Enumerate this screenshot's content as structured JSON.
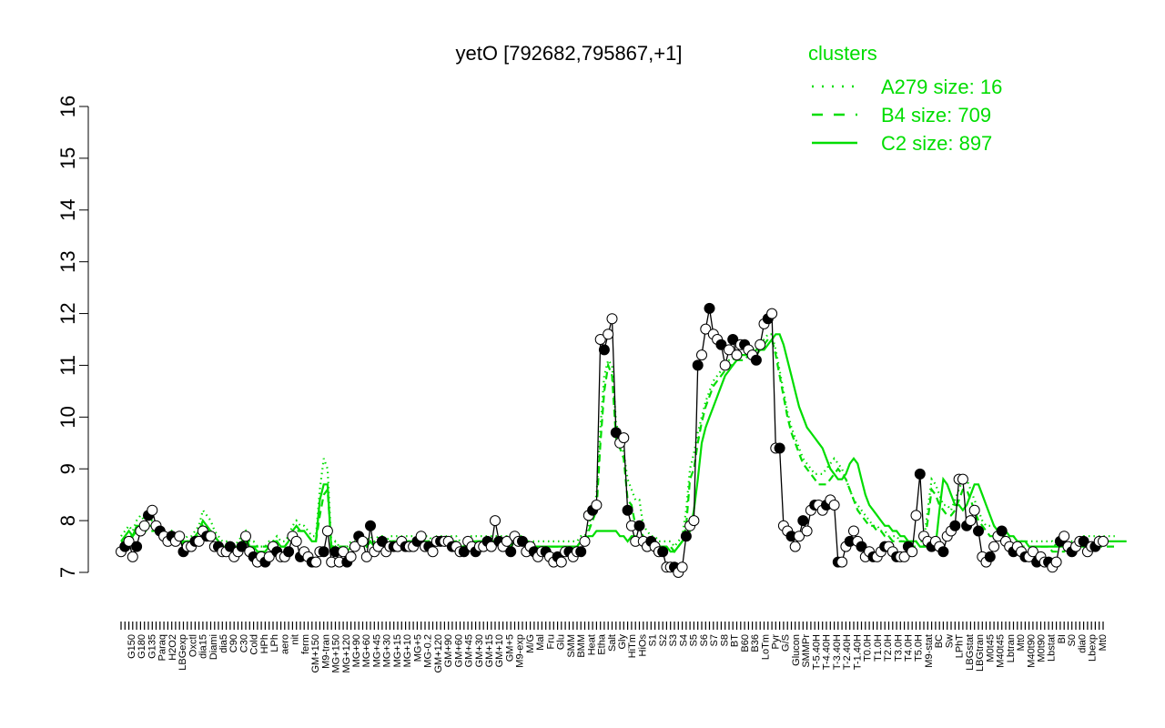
{
  "chart_data": {
    "type": "line",
    "title": "yetO [792682,795867,+1]",
    "xlabel": "",
    "ylabel": "",
    "ylim": [
      7,
      16
    ],
    "yticks": [
      7,
      8,
      9,
      10,
      11,
      12,
      13,
      14,
      15,
      16
    ],
    "grid": false,
    "colors": {
      "cluster": "#00dd00",
      "points": "#000000",
      "point_fill": "#ffffff",
      "rug": "#000000"
    },
    "legend": {
      "position": "top-right",
      "title": "clusters",
      "entries": [
        {
          "label": "A279 size: 16",
          "style": "dotted"
        },
        {
          "label": "B4 size: 709",
          "style": "dashed"
        },
        {
          "label": "C2 size: 897",
          "style": "solid"
        }
      ]
    },
    "x_tick_labels": [
      "G150",
      "G180",
      "G135",
      "Paraq",
      "H2O2",
      "LBGexp",
      "Oxctl",
      "dia15",
      "Diami",
      "dia5",
      "C90",
      "C30",
      "Cold",
      "HPh",
      "LPh",
      "aero",
      "nit",
      "ferm",
      "GM+150",
      "M9-tran",
      "MG+150",
      "MG+120",
      "MG+90",
      "MG+60",
      "MG+45",
      "MG+30",
      "MG+15",
      "MG+10",
      "MG+5",
      "MG-0.2",
      "GM+120",
      "GM+90",
      "GM+60",
      "GM+45",
      "GM+30",
      "GM+15",
      "GM+10",
      "GM+5",
      "M9-exp",
      "M/G",
      "Mal",
      "Fru",
      "Glu",
      "SMM",
      "BMM",
      "Heat",
      "Etha",
      "Salt",
      "Gly",
      "HiTm",
      "HiOs",
      "S1",
      "S2",
      "S3",
      "S4",
      "S5",
      "S6",
      "S7",
      "S8",
      "BT",
      "B60",
      "B36",
      "LoTm",
      "Pyr",
      "G/S",
      "Glucon",
      "SMMPr",
      "T-5.40H",
      "T-4.40H",
      "T-3.40H",
      "T-2.40H",
      "T-1.40H",
      "T0.0H",
      "T1.0H",
      "T2.0H",
      "T3.0H",
      "T4.0H",
      "T5.0H",
      "M9-stat",
      "BC",
      "Sw",
      "LPhT",
      "LBGstat",
      "LBGtran",
      "M0t45",
      "M40t45",
      "Lbtran",
      "Mt0",
      "M40t90",
      "M0t90",
      "Lbstat",
      "BI",
      "S0",
      "dia0",
      "Lbexp",
      "Mt0"
    ],
    "series": [
      {
        "name": "yetO",
        "values": [
          7.4,
          7.5,
          7.6,
          7.3,
          7.5,
          7.8,
          7.9,
          8.1,
          8.2,
          7.9,
          7.8,
          7.7,
          7.6,
          7.7,
          7.6,
          7.7,
          7.4,
          7.5,
          7.5,
          7.6,
          7.6,
          7.8,
          7.7,
          7.7,
          7.5,
          7.5,
          7.4,
          7.4,
          7.5,
          7.3,
          7.4,
          7.5,
          7.7,
          7.4,
          7.3,
          7.2,
          7.3,
          7.2,
          7.3,
          7.5,
          7.4,
          7.3,
          7.3,
          7.4,
          7.7,
          7.6,
          7.3,
          7.4,
          7.3,
          7.2,
          7.2,
          7.4,
          7.4,
          7.8,
          7.2,
          7.4,
          7.2,
          7.4,
          7.2,
          7.3,
          7.5,
          7.7,
          7.6,
          7.3,
          7.9,
          7.4,
          7.5,
          7.6,
          7.4,
          7.5,
          7.5,
          7.5,
          7.6,
          7.5,
          7.5,
          7.5,
          7.6,
          7.7,
          7.5,
          7.5,
          7.4,
          7.6,
          7.6,
          7.6,
          7.6,
          7.5,
          7.5,
          7.4,
          7.4,
          7.6,
          7.5,
          7.4,
          7.5,
          7.5,
          7.6,
          7.5,
          8.0,
          7.6,
          7.5,
          7.6,
          7.4,
          7.7,
          7.6,
          7.6,
          7.4,
          7.5,
          7.4,
          7.3,
          7.4,
          7.4,
          7.3,
          7.2,
          7.3,
          7.2,
          7.4,
          7.4,
          7.3,
          7.4,
          7.4,
          7.6,
          8.1,
          8.2,
          8.3,
          11.5,
          11.3,
          11.6,
          11.9,
          9.7,
          9.5,
          9.6,
          8.2,
          7.9,
          7.6,
          7.9,
          7.6,
          7.5,
          7.6,
          7.5,
          7.4,
          7.4,
          7.1,
          7.1,
          7.1,
          7.0,
          7.1,
          7.7,
          7.9,
          8.0,
          11.0,
          11.2,
          11.7,
          12.1,
          11.6,
          11.5,
          11.4,
          11.0,
          11.3,
          11.5,
          11.2,
          11.4,
          11.4,
          11.3,
          11.2,
          11.1,
          11.4,
          11.8,
          11.9,
          12.0,
          9.4,
          9.4,
          7.9,
          7.8,
          7.7,
          7.5,
          7.7,
          8.0,
          7.8,
          8.2,
          8.3,
          8.3,
          8.2,
          8.3,
          8.4,
          8.3,
          7.2,
          7.2,
          7.5,
          7.6,
          7.8,
          7.6,
          7.5,
          7.3,
          7.4,
          7.3,
          7.3,
          7.4,
          7.5,
          7.5,
          7.4,
          7.3,
          7.3,
          7.3,
          7.5,
          7.4,
          8.1,
          8.9,
          7.7,
          7.6,
          7.5,
          7.6,
          7.5,
          7.4,
          7.7,
          7.8,
          7.9,
          8.8,
          8.8,
          7.9,
          8.0,
          8.2,
          7.8,
          7.3,
          7.2,
          7.3,
          7.5,
          7.7,
          7.8,
          7.6,
          7.5,
          7.4,
          7.5,
          7.4,
          7.3,
          7.3,
          7.4,
          7.2,
          7.3,
          7.2,
          7.2,
          7.1,
          7.2,
          7.6,
          7.7,
          7.5,
          7.4,
          7.5,
          7.6,
          7.6,
          7.4,
          7.5,
          7.5,
          7.6,
          7.6
        ]
      },
      {
        "name": "C2 size: 897",
        "values": [
          7.6,
          7.7,
          7.8,
          7.7,
          7.9,
          7.9,
          7.8,
          7.9,
          7.9,
          7.8,
          7.7,
          7.7,
          7.6,
          7.7,
          7.6,
          7.7,
          7.5,
          7.6,
          7.6,
          7.7,
          7.8,
          8.0,
          7.9,
          7.8,
          7.7,
          7.6,
          7.5,
          7.5,
          7.5,
          7.4,
          7.5,
          7.6,
          7.7,
          7.5,
          7.5,
          7.4,
          7.4,
          7.4,
          7.5,
          7.5,
          7.6,
          7.5,
          7.5,
          7.6,
          7.8,
          7.9,
          7.8,
          7.8,
          7.7,
          7.6,
          7.6,
          8.4,
          8.7,
          8.7,
          7.4,
          7.5,
          7.4,
          7.4,
          7.4,
          7.5,
          7.5,
          7.6,
          7.6,
          7.5,
          7.6,
          7.5,
          7.6,
          7.6,
          7.5,
          7.6,
          7.6,
          7.6,
          7.6,
          7.6,
          7.6,
          7.6,
          7.6,
          7.7,
          7.6,
          7.6,
          7.5,
          7.6,
          7.6,
          7.6,
          7.6,
          7.6,
          7.6,
          7.5,
          7.5,
          7.6,
          7.6,
          7.6,
          7.6,
          7.6,
          7.6,
          7.6,
          7.6,
          7.6,
          7.6,
          7.6,
          7.5,
          7.6,
          7.6,
          7.6,
          7.5,
          7.5,
          7.5,
          7.5,
          7.5,
          7.5,
          7.5,
          7.5,
          7.5,
          7.5,
          7.5,
          7.5,
          7.5,
          7.5,
          7.6,
          7.6,
          7.7,
          7.7,
          7.8,
          7.8,
          7.8,
          7.8,
          7.8,
          7.8,
          7.7,
          7.7,
          7.6,
          7.7,
          7.7,
          7.6,
          7.6,
          7.6,
          7.6,
          7.5,
          7.5,
          7.5,
          7.5,
          7.4,
          7.4,
          7.5,
          7.6,
          7.7,
          7.8,
          8.2,
          8.8,
          9.5,
          9.8,
          10.0,
          10.2,
          10.4,
          10.6,
          10.8,
          10.9,
          11.0,
          11.1,
          11.2,
          11.2,
          11.2,
          11.2,
          11.2,
          11.3,
          11.3,
          11.4,
          11.5,
          11.6,
          11.6,
          11.4,
          11.1,
          10.8,
          10.5,
          10.2,
          10.0,
          9.8,
          9.7,
          9.6,
          9.5,
          9.4,
          9.2,
          9.0,
          8.9,
          8.8,
          8.8,
          8.9,
          9.1,
          9.2,
          9.1,
          8.8,
          8.5,
          8.3,
          8.2,
          8.1,
          8.0,
          7.9,
          7.9,
          7.8,
          7.8,
          7.7,
          7.7,
          7.6,
          7.6,
          7.6,
          7.5,
          7.5,
          7.5,
          7.5,
          7.5,
          8.2,
          8.8,
          8.7,
          8.5,
          8.3,
          8.3,
          8.2,
          8.3,
          8.5,
          8.7,
          8.7,
          8.5,
          8.3,
          8.1,
          7.9,
          7.8,
          7.8,
          7.8,
          7.7,
          7.7,
          7.6,
          7.6,
          7.6,
          7.5,
          7.5,
          7.5,
          7.5,
          7.5,
          7.5,
          7.5,
          7.5,
          7.5,
          7.5,
          7.4,
          7.4,
          7.4,
          7.5,
          7.5,
          7.5,
          7.5,
          7.6,
          7.6,
          7.6,
          7.6,
          7.6,
          7.6,
          7.6,
          7.6,
          7.6
        ]
      },
      {
        "name": "B4 size: 709",
        "values": [
          7.6,
          7.6,
          7.7,
          7.7,
          7.8,
          7.8,
          7.8,
          7.8,
          7.8,
          7.8,
          7.7,
          7.7,
          7.6,
          7.6,
          7.6,
          7.6,
          7.6,
          7.6,
          7.6,
          7.7,
          7.7,
          7.9,
          7.8,
          7.8,
          7.7,
          7.6,
          7.5,
          7.5,
          7.5,
          7.5,
          7.5,
          7.6,
          7.6,
          7.5,
          7.5,
          7.5,
          7.5,
          7.5,
          7.5,
          7.6,
          7.6,
          7.5,
          7.5,
          7.6,
          7.7,
          7.8,
          7.8,
          7.8,
          7.7,
          7.6,
          7.6,
          8.1,
          8.5,
          8.6,
          7.5,
          7.5,
          7.5,
          7.5,
          7.5,
          7.5,
          7.5,
          7.6,
          7.6,
          7.5,
          7.6,
          7.5,
          7.6,
          7.6,
          7.5,
          7.6,
          7.6,
          7.6,
          7.6,
          7.6,
          7.6,
          7.6,
          7.6,
          7.6,
          7.6,
          7.6,
          7.5,
          7.6,
          7.6,
          7.6,
          7.6,
          7.6,
          7.6,
          7.5,
          7.5,
          7.6,
          7.6,
          7.6,
          7.6,
          7.6,
          7.6,
          7.6,
          7.6,
          7.6,
          7.6,
          7.6,
          7.5,
          7.6,
          7.6,
          7.6,
          7.5,
          7.5,
          7.5,
          7.5,
          7.5,
          7.5,
          7.5,
          7.5,
          7.5,
          7.5,
          7.5,
          7.5,
          7.5,
          7.5,
          7.6,
          7.6,
          7.8,
          8.0,
          8.2,
          9.5,
          10.5,
          11.0,
          10.8,
          9.6,
          9.4,
          9.2,
          8.4,
          8.3,
          7.9,
          7.8,
          7.7,
          7.6,
          7.6,
          7.6,
          7.5,
          7.5,
          7.5,
          7.5,
          7.4,
          7.5,
          7.6,
          7.9,
          8.8,
          9.0,
          9.5,
          9.9,
          10.2,
          10.4,
          10.6,
          10.7,
          10.8,
          10.9,
          11.0,
          11.0,
          11.1,
          11.1,
          11.1,
          11.2,
          11.2,
          11.3,
          11.3,
          11.4,
          11.5,
          11.5,
          11.2,
          10.8,
          10.4,
          10.0,
          9.7,
          9.5,
          9.3,
          9.1,
          9.0,
          8.9,
          8.8,
          8.7,
          8.7,
          8.7,
          8.8,
          8.9,
          9.0,
          8.9,
          8.8,
          8.6,
          8.4,
          8.2,
          8.1,
          8.0,
          7.9,
          7.9,
          7.8,
          7.8,
          7.7,
          7.7,
          7.6,
          7.6,
          7.6,
          7.6,
          7.5,
          7.5,
          7.5,
          7.5,
          7.5,
          8.0,
          8.6,
          8.5,
          8.3,
          8.2,
          8.1,
          8.1,
          8.2,
          8.4,
          8.6,
          8.6,
          8.4,
          8.2,
          8.0,
          7.9,
          7.8,
          7.7,
          7.7,
          7.7,
          7.6,
          7.6,
          7.6,
          7.5,
          7.5,
          7.5,
          7.5,
          7.5,
          7.5,
          7.5,
          7.5,
          7.5,
          7.5,
          7.4,
          7.4,
          7.4,
          7.4,
          7.5,
          7.5,
          7.5,
          7.5,
          7.5,
          7.5,
          7.5,
          7.5,
          7.5,
          7.5,
          7.5,
          7.5,
          7.5
        ]
      },
      {
        "name": "A279 size: 16",
        "values": [
          7.7,
          7.8,
          7.9,
          7.8,
          8.0,
          8.1,
          8.0,
          8.0,
          8.0,
          7.9,
          7.8,
          7.8,
          7.7,
          7.8,
          7.7,
          7.8,
          7.6,
          7.7,
          7.7,
          7.8,
          7.9,
          8.2,
          8.1,
          8.0,
          7.8,
          7.7,
          7.6,
          7.6,
          7.6,
          7.5,
          7.6,
          7.7,
          7.8,
          7.6,
          7.6,
          7.5,
          7.5,
          7.5,
          7.6,
          7.6,
          7.7,
          7.6,
          7.6,
          7.7,
          7.9,
          8.0,
          7.9,
          7.9,
          7.8,
          7.7,
          7.7,
          8.6,
          9.2,
          9.0,
          7.5,
          7.6,
          7.5,
          7.5,
          7.5,
          7.6,
          7.6,
          7.7,
          7.7,
          7.6,
          7.7,
          7.6,
          7.7,
          7.7,
          7.6,
          7.7,
          7.7,
          7.7,
          7.7,
          7.7,
          7.7,
          7.7,
          7.7,
          7.8,
          7.7,
          7.7,
          7.6,
          7.7,
          7.7,
          7.7,
          7.7,
          7.7,
          7.7,
          7.6,
          7.6,
          7.7,
          7.7,
          7.7,
          7.7,
          7.7,
          7.7,
          7.7,
          7.7,
          7.7,
          7.7,
          7.7,
          7.6,
          7.7,
          7.7,
          7.7,
          7.6,
          7.6,
          7.6,
          7.6,
          7.6,
          7.6,
          7.6,
          7.6,
          7.6,
          7.6,
          7.6,
          7.6,
          7.6,
          7.6,
          7.7,
          7.7,
          7.9,
          8.2,
          8.5,
          9.8,
          10.8,
          11.1,
          11.0,
          9.9,
          9.6,
          9.3,
          8.8,
          8.6,
          8.4,
          8.4,
          7.9,
          7.8,
          7.7,
          7.7,
          7.6,
          7.6,
          7.6,
          7.6,
          7.5,
          7.6,
          7.7,
          8.2,
          9.0,
          9.3,
          9.7,
          10.0,
          10.3,
          10.5,
          10.7,
          10.8,
          10.9,
          11.0,
          11.1,
          11.1,
          11.2,
          11.2,
          11.2,
          11.3,
          11.3,
          11.4,
          11.4,
          11.5,
          11.6,
          11.6,
          11.3,
          10.9,
          10.5,
          10.1,
          9.8,
          9.6,
          9.4,
          9.2,
          9.1,
          9.0,
          8.9,
          8.9,
          8.9,
          9.0,
          9.1,
          9.2,
          9.1,
          9.0,
          8.8,
          8.6,
          8.4,
          8.3,
          8.2,
          8.1,
          8.0,
          7.9,
          7.9,
          7.8,
          7.8,
          7.7,
          7.7,
          7.7,
          7.6,
          7.6,
          7.6,
          7.6,
          7.6,
          7.6,
          7.6,
          8.2,
          8.8,
          8.7,
          8.5,
          8.3,
          8.3,
          8.2,
          8.4,
          8.6,
          8.8,
          8.8,
          8.6,
          8.4,
          8.2,
          8.0,
          7.9,
          7.9,
          7.9,
          7.8,
          7.8,
          7.7,
          7.7,
          7.7,
          7.6,
          7.6,
          7.6,
          7.6,
          7.6,
          7.6,
          7.6,
          7.6,
          7.6,
          7.6,
          7.5,
          7.5,
          7.5,
          7.6,
          7.6,
          7.6,
          7.6,
          7.7,
          7.7,
          7.7,
          7.7,
          7.7,
          7.7,
          7.7,
          7.7,
          7.7
        ]
      }
    ]
  }
}
